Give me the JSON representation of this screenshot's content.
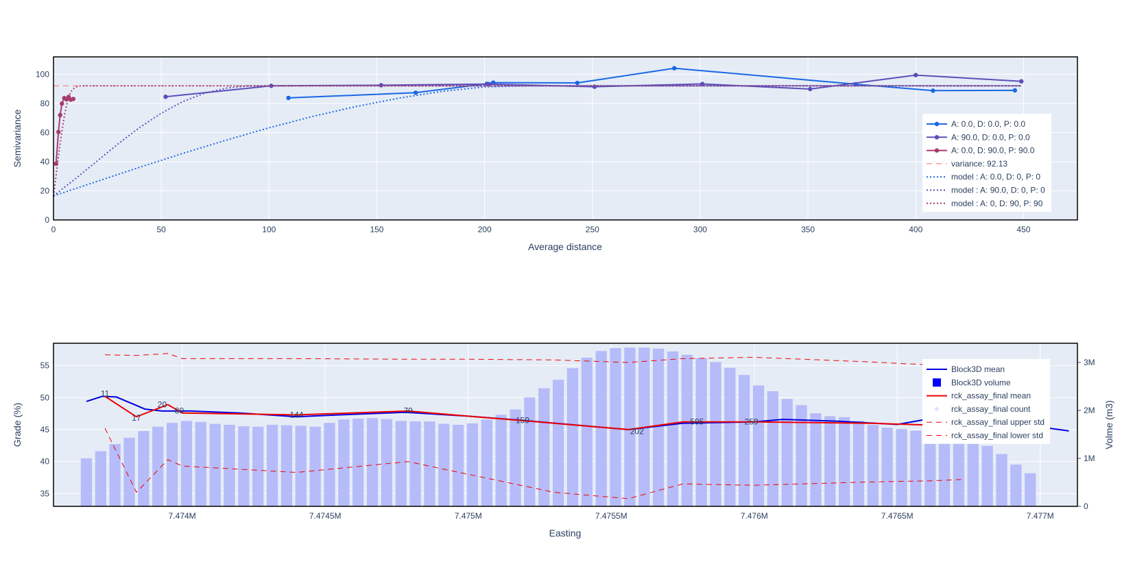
{
  "chart_data": [
    {
      "type": "line",
      "xlabel": "Average distance",
      "ylabel": "Semivariance",
      "xlim": [
        0,
        475
      ],
      "ylim": [
        0,
        112
      ],
      "x_ticks": [
        "0",
        "50",
        "100",
        "150",
        "200",
        "250",
        "300",
        "350",
        "400",
        "450"
      ],
      "y_ticks": [
        "0",
        "20",
        "40",
        "60",
        "80",
        "100"
      ],
      "grid": true,
      "legend_position": "right",
      "series": [
        {
          "name": "A: 0.0, D: 0.0, P: 0.0",
          "color": "#1967e6",
          "style": "lines+markers",
          "x": [
            109,
            168,
            201,
            204,
            243,
            288,
            372,
            408,
            446
          ],
          "y": [
            83.8,
            87.4,
            93.5,
            94.3,
            94.1,
            104.2,
            93.2,
            88.8,
            89.0
          ]
        },
        {
          "name": "A: 90.0, D: 0.0, P: 0.0",
          "color": "#5b4eb8",
          "style": "lines+markers",
          "x": [
            52,
            101,
            152,
            202,
            251,
            301,
            351,
            400,
            449
          ],
          "y": [
            84.6,
            92.1,
            92.5,
            93.3,
            91.5,
            93.4,
            89.9,
            99.5,
            95.2
          ]
        },
        {
          "name": "A: 0.0, D: 90.0, P: 90.0",
          "color": "#a83a6e",
          "style": "lines+markers",
          "x": [
            1.2,
            2.3,
            3.1,
            3.9,
            5.0,
            6.0,
            7.0,
            8.0,
            9.2
          ],
          "y": [
            38.6,
            60.4,
            72.0,
            79.9,
            83.7,
            82.8,
            84.5,
            82.6,
            83.1
          ]
        },
        {
          "name": "variance: 92.13",
          "color": "#ff6b6b",
          "style": "dash",
          "x": [
            0,
            449
          ],
          "y": [
            92.13,
            92.13
          ]
        },
        {
          "name": "model : A: 0.0, D: 0, P: 0",
          "color": "#1967e6",
          "style": "dot",
          "x": [
            0,
            20,
            40,
            60,
            80,
            100,
            120,
            140,
            160,
            180,
            200,
            220,
            250,
            300,
            350,
            400,
            449
          ],
          "y": [
            16.5,
            26.4,
            36.2,
            45.7,
            54.8,
            63.3,
            71.0,
            77.8,
            83.6,
            88.3,
            91.4,
            92.1,
            92.1,
            92.1,
            92.1,
            92.1,
            92.1
          ]
        },
        {
          "name": "model : A: 90.0, D: 0, P: 0",
          "color": "#5b4eb8",
          "style": "dot",
          "x": [
            0,
            10,
            20,
            30,
            40,
            50,
            60,
            70,
            80,
            90,
            100,
            120,
            150,
            200,
            300,
            449
          ],
          "y": [
            16.5,
            28.1,
            40.2,
            52.3,
            63.5,
            73.3,
            81.3,
            87.0,
            90.5,
            92.0,
            92.1,
            92.1,
            92.1,
            92.1,
            92.1,
            92.1
          ]
        },
        {
          "name": "model : A: 0, D: 90, P: 90",
          "color": "#a83a6e",
          "style": "dot",
          "x": [
            0,
            1,
            2,
            3,
            4,
            5,
            6,
            7,
            8,
            10,
            12,
            14,
            20,
            100,
            300,
            449
          ],
          "y": [
            16.5,
            28.0,
            40.0,
            51.5,
            62.0,
            71.0,
            78.5,
            84.0,
            87.9,
            91.2,
            92.0,
            92.13,
            92.13,
            92.13,
            92.13,
            92.13
          ]
        }
      ]
    },
    {
      "type": "bar",
      "xlabel": "Easting",
      "ylabel": "Grade (%)",
      "y2label": "Volme (m3)",
      "xlim": [
        7473550,
        7477130
      ],
      "ylim": [
        33,
        58.5
      ],
      "y2lim": [
        0,
        3.4
      ],
      "x_ticks": [
        {
          "v": 7474000,
          "label": "7.474M"
        },
        {
          "v": 7474500,
          "label": "7.4745M"
        },
        {
          "v": 7475000,
          "label": "7.475M"
        },
        {
          "v": 7475500,
          "label": "7.4755M"
        },
        {
          "v": 7476000,
          "label": "7.476M"
        },
        {
          "v": 7476500,
          "label": "7.4765M"
        },
        {
          "v": 7477000,
          "label": "7.477M"
        }
      ],
      "y_ticks": [
        "35",
        "40",
        "45",
        "50",
        "55"
      ],
      "y2_ticks": [
        {
          "v": 0,
          "label": "0"
        },
        {
          "v": 1,
          "label": "1M"
        },
        {
          "v": 2,
          "label": "2M"
        },
        {
          "v": 3,
          "label": "3M"
        }
      ],
      "grid": true,
      "legend_position": "right",
      "bar_x_start": 7473665,
      "bar_x_step": 50,
      "bar_color": "#b6bcf9",
      "volume_millions": [
        1.0,
        1.15,
        1.3,
        1.43,
        1.57,
        1.66,
        1.74,
        1.78,
        1.76,
        1.72,
        1.7,
        1.67,
        1.66,
        1.7,
        1.69,
        1.68,
        1.66,
        1.74,
        1.81,
        1.83,
        1.84,
        1.82,
        1.78,
        1.77,
        1.77,
        1.72,
        1.7,
        1.73,
        1.81,
        1.91,
        2.02,
        2.27,
        2.46,
        2.64,
        2.88,
        3.1,
        3.24,
        3.3,
        3.31,
        3.31,
        3.29,
        3.23,
        3.16,
        3.09,
        3.01,
        2.89,
        2.74,
        2.52,
        2.4,
        2.24,
        2.11,
        1.94,
        1.88,
        1.86,
        1.78,
        1.7,
        1.64,
        1.61,
        1.58,
        1.55,
        1.52,
        1.49,
        1.37,
        1.26,
        1.09,
        0.87,
        0.69
      ],
      "series": [
        {
          "name": "Block3D mean",
          "color": "#0000dd",
          "style": "solid",
          "x": [
            7473665,
            7473720,
            7473770,
            7473870,
            7473930,
            7474030,
            7474200,
            7474400,
            7474550,
            7474780,
            7475000,
            7475200,
            7475560,
            7475750,
            7476000,
            7476100,
            7476300,
            7476500,
            7476600,
            7476730,
            7476850,
            7476950,
            7477100
          ],
          "y": [
            49.4,
            50.2,
            50.1,
            48.2,
            47.9,
            47.9,
            47.6,
            47.0,
            47.3,
            47.7,
            47.1,
            46.4,
            45.0,
            46.0,
            46.2,
            46.6,
            46.3,
            45.8,
            46.6,
            47.0,
            46.4,
            45.7,
            44.8
          ]
        },
        {
          "name": "Block3D volume",
          "color": "#0000ff",
          "style": "square"
        },
        {
          "name": "rck_assay_final mean",
          "color": "#ee0000",
          "style": "solid",
          "x": [
            7473730,
            7473840,
            7473950,
            7474000,
            7474400,
            7474790,
            7475000,
            7475300,
            7475560,
            7475750,
            7476000,
            7476400,
            7476620,
            7476730
          ],
          "y": [
            50.2,
            47.0,
            48.9,
            47.6,
            47.3,
            47.9,
            47.1,
            46.0,
            45.0,
            46.2,
            46.2,
            46.0,
            45.7,
            45.6
          ]
        },
        {
          "name": "rck_assay_final count",
          "color": "#dfe4ff",
          "style": "marker"
        },
        {
          "name": "rck_assay_final upper std",
          "color": "#ee0000",
          "style": "dash",
          "x": [
            7473730,
            7473840,
            7473950,
            7474000,
            7474400,
            7474790,
            7475000,
            7475300,
            7475560,
            7475750,
            7476000,
            7476400,
            7476620,
            7476730
          ],
          "y": [
            56.7,
            56.6,
            56.9,
            56.1,
            56.1,
            56.0,
            56.0,
            55.9,
            55.5,
            56.1,
            56.3,
            55.6,
            55.1,
            55.0
          ]
        },
        {
          "name": "rck_assay_final lower std",
          "color": "#ee0000",
          "style": "dash",
          "x": [
            7473730,
            7473840,
            7473950,
            7474000,
            7474400,
            7474790,
            7475000,
            7475300,
            7475560,
            7475750,
            7476000,
            7476400,
            7476620,
            7476730
          ],
          "y": [
            45.2,
            35.2,
            40.3,
            39.3,
            38.3,
            40.0,
            38.0,
            35.2,
            34.2,
            36.5,
            36.3,
            36.8,
            37.0,
            37.2
          ]
        }
      ],
      "annotations": [
        {
          "text": "11",
          "x": 7473730,
          "y": 50.2
        },
        {
          "text": "17",
          "x": 7473840,
          "y": 46.4
        },
        {
          "text": "20",
          "x": 7473930,
          "y": 48.5
        },
        {
          "text": "80",
          "x": 7473990,
          "y": 47.5
        },
        {
          "text": "144",
          "x": 7474400,
          "y": 46.9
        },
        {
          "text": "79",
          "x": 7474790,
          "y": 47.5
        },
        {
          "text": "159",
          "x": 7475190,
          "y": 46.0
        },
        {
          "text": "202",
          "x": 7475590,
          "y": 44.3
        },
        {
          "text": "595",
          "x": 7475800,
          "y": 45.8
        },
        {
          "text": "259",
          "x": 7475990,
          "y": 45.8
        }
      ]
    }
  ]
}
